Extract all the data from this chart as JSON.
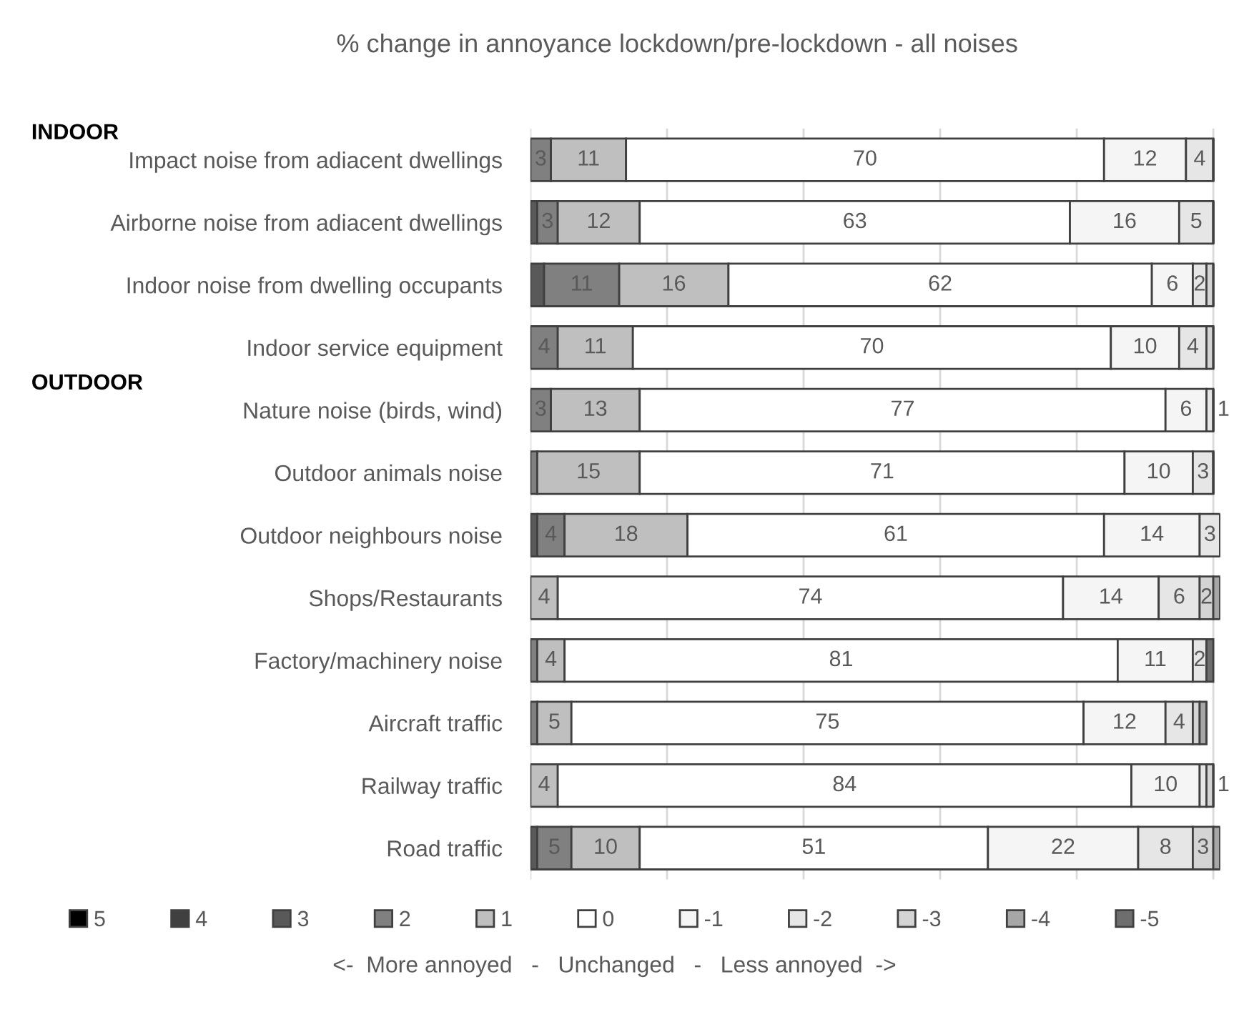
{
  "chart_data": {
    "type": "bar",
    "orientation": "horizontal",
    "stacked": true,
    "title": "% change in annoyance lockdown/pre-lockdown - all noises",
    "categories": [
      "Impact noise from adiacent dwellings",
      "Airborne noise from adiacent dwellings",
      "Indoor noise from dwelling occupants",
      "Indoor service equipment",
      "Nature noise (birds, wind)",
      "Outdoor animals noise",
      "Outdoor neighbours noise",
      "Shops/Restaurants",
      "Factory/machinery noise",
      "Aircraft traffic",
      "Railway traffic",
      "Road traffic"
    ],
    "series": [
      {
        "name": "5",
        "color": "#000000",
        "values": [
          0,
          0,
          0,
          0,
          0,
          0,
          0,
          0,
          0,
          0,
          0,
          0
        ],
        "value_labels": [
          null,
          null,
          null,
          null,
          null,
          null,
          null,
          null,
          null,
          null,
          null,
          null
        ]
      },
      {
        "name": "4",
        "color": "#404040",
        "values": [
          0,
          0,
          0,
          0,
          0,
          0,
          0,
          0,
          0,
          0,
          0,
          0
        ],
        "value_labels": [
          null,
          null,
          null,
          null,
          null,
          null,
          null,
          null,
          null,
          null,
          null,
          null
        ]
      },
      {
        "name": "3",
        "color": "#595959",
        "values": [
          0,
          1,
          2,
          0,
          0,
          0,
          1,
          0,
          0,
          0,
          0,
          1
        ],
        "value_labels": [
          null,
          null,
          null,
          null,
          null,
          null,
          null,
          null,
          null,
          null,
          null,
          null
        ]
      },
      {
        "name": "2",
        "color": "#808080",
        "values": [
          3,
          3,
          11,
          4,
          3,
          1,
          4,
          0,
          1,
          1,
          0,
          5
        ],
        "value_labels": [
          "3",
          "3",
          "11",
          "4",
          "3",
          null,
          "4",
          null,
          null,
          null,
          null,
          "5"
        ]
      },
      {
        "name": "1",
        "color": "#bfbfbf",
        "values": [
          11,
          12,
          16,
          11,
          13,
          15,
          18,
          4,
          4,
          5,
          4,
          10
        ],
        "value_labels": [
          "11",
          "12",
          "16",
          "11",
          "13",
          "15",
          "18",
          "4",
          "4",
          "5",
          "4",
          "10"
        ]
      },
      {
        "name": "0",
        "color": "#ffffff",
        "values": [
          70,
          63,
          62,
          70,
          77,
          71,
          61,
          74,
          81,
          75,
          84,
          51
        ],
        "value_labels": [
          "70",
          "63",
          "62",
          "70",
          "77",
          "71",
          "61",
          "74",
          "81",
          "75",
          "84",
          "51"
        ]
      },
      {
        "name": "-1",
        "color": "#f5f5f5",
        "values": [
          12,
          16,
          6,
          10,
          6,
          10,
          14,
          14,
          11,
          12,
          10,
          22
        ],
        "value_labels": [
          "12",
          "16",
          "6",
          "10",
          "6",
          "10",
          "14",
          "14",
          "11",
          "12",
          "10",
          "22"
        ]
      },
      {
        "name": "-2",
        "color": "#e6e6e6",
        "values": [
          4,
          5,
          2,
          4,
          1,
          3,
          3,
          6,
          2,
          4,
          1,
          8
        ],
        "value_labels": [
          "4",
          "5",
          "2",
          "4",
          "1",
          "3",
          "3",
          "6",
          "2",
          "4",
          "1",
          "8"
        ]
      },
      {
        "name": "-3",
        "color": "#d4d4d4",
        "values": [
          0,
          0,
          1,
          1,
          0,
          0,
          0,
          2,
          0,
          1,
          1,
          3
        ],
        "value_labels": [
          null,
          null,
          null,
          null,
          null,
          null,
          null,
          "2",
          null,
          null,
          null,
          "3"
        ]
      },
      {
        "name": "-4",
        "color": "#a6a6a6",
        "values": [
          0,
          0,
          0,
          0,
          0,
          0,
          0,
          1,
          0,
          1,
          0,
          1
        ],
        "value_labels": [
          null,
          null,
          null,
          null,
          null,
          null,
          null,
          null,
          null,
          null,
          null,
          null
        ]
      },
      {
        "name": "-5",
        "color": "#6e6e6e",
        "values": [
          0,
          0,
          0,
          0,
          0,
          0,
          0,
          0,
          1,
          0,
          0,
          0
        ],
        "value_labels": [
          null,
          null,
          null,
          null,
          null,
          null,
          null,
          null,
          null,
          null,
          null,
          null
        ]
      }
    ],
    "xlim": [
      0,
      101
    ],
    "xticks": [
      {
        "value": 0,
        "label": null
      },
      {
        "value": 20,
        "label": null
      },
      {
        "value": 40,
        "label": null
      },
      {
        "value": 60,
        "label": null
      },
      {
        "value": 80,
        "label": null
      },
      {
        "value": 100,
        "label": null
      }
    ],
    "tick_labels": "y",
    "grid": "x",
    "legend": "bottom",
    "annotations": [
      "INDOOR",
      "OUTDOOR",
      "<-  More annoyed   -   Unchanged   -   Less annoyed  ->"
    ]
  }
}
